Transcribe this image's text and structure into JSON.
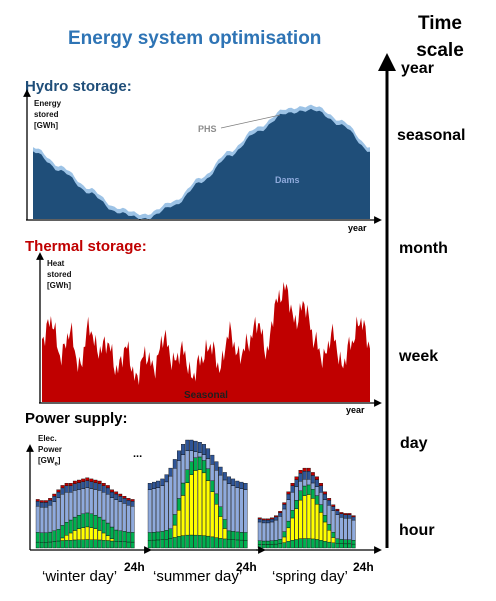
{
  "title": "Energy system optimisation",
  "hydro": {
    "title": "Hydro storage:",
    "ylabel": "Energy stored [GWh]",
    "xlabel": "year",
    "phs_label": "PHS",
    "dams_label": "Dams",
    "colors": {
      "dams": "#1f4e79",
      "phs": "#9dc3e6"
    }
  },
  "thermal": {
    "title": "Thermal storage:",
    "ylabel": "Heat stored [GWh]",
    "xlabel": "year",
    "seasonal_label": "Seasonal",
    "colors": {
      "fill": "#c00000"
    }
  },
  "power": {
    "title": "Power supply:",
    "ylabel_line1": "Elec.",
    "ylabel_line2": "Power",
    "ylabel_line3": "[GW",
    "ylabel_sub": "e",
    "ylabel_end": "]",
    "ellipsis": "...",
    "days": [
      {
        "label": "‘winter day’",
        "end": "24h"
      },
      {
        "label": "‘summer day’",
        "end": "24h"
      },
      {
        "label": "‘spring day’",
        "end": "24h"
      }
    ],
    "colors": {
      "base": "#00b050",
      "solar": "#ffff00",
      "wind": "#8faadc",
      "hydro": "#2f5597",
      "other": "#c00000"
    }
  },
  "timescale": {
    "title_line1": "Time",
    "title_line2": "scale",
    "levels": [
      "year",
      "seasonal",
      "month",
      "week",
      "day",
      "hour"
    ]
  },
  "chart_data": [
    {
      "type": "area",
      "title": "Hydro storage:",
      "ylabel": "Energy stored [GWh]",
      "xlabel": "year",
      "x": [
        0,
        1,
        2,
        3,
        4,
        5,
        6,
        7,
        8,
        9,
        10,
        11,
        12
      ],
      "series": [
        {
          "name": "Dams",
          "values": [
            0.62,
            0.44,
            0.24,
            0.06,
            0.0,
            0.12,
            0.34,
            0.58,
            0.8,
            0.97,
            1.0,
            0.86,
            0.62
          ]
        },
        {
          "name": "PHS",
          "values": [
            0.02,
            0.02,
            0.02,
            0.02,
            0.02,
            0.02,
            0.02,
            0.02,
            0.02,
            0.02,
            0.02,
            0.02,
            0.02
          ]
        }
      ]
    },
    {
      "type": "area",
      "title": "Thermal storage:",
      "ylabel": "Heat stored [GWh]",
      "xlabel": "year",
      "series": [
        {
          "name": "Seasonal",
          "values": [
            0.55,
            0.72,
            0.4,
            0.62,
            0.3,
            0.66,
            0.45,
            0.52,
            0.28,
            0.48,
            0.2,
            0.42,
            0.3,
            0.58,
            0.35,
            0.46,
            0.22,
            0.38,
            0.5,
            0.3,
            0.62,
            0.4,
            0.52,
            0.7,
            0.44,
            0.88,
            1.0,
            0.7,
            0.86,
            0.56,
            0.38,
            0.6,
            0.32,
            0.52,
            0.72,
            0.5
          ]
        }
      ]
    },
    {
      "type": "bar",
      "title": "Power supply:",
      "series": [
        {
          "name": "winter day",
          "values": [
            0.45,
            0.44,
            0.44,
            0.46,
            0.5,
            0.54,
            0.58,
            0.6,
            0.6,
            0.62,
            0.63,
            0.64,
            0.65,
            0.64,
            0.63,
            0.62,
            0.6,
            0.58,
            0.54,
            0.52,
            0.5,
            0.48,
            0.46,
            0.45
          ]
        },
        {
          "name": "summer day",
          "values": [
            0.6,
            0.61,
            0.62,
            0.64,
            0.68,
            0.74,
            0.82,
            0.9,
            0.96,
            1.0,
            1.0,
            0.99,
            0.98,
            0.96,
            0.92,
            0.86,
            0.8,
            0.75,
            0.7,
            0.66,
            0.64,
            0.62,
            0.61,
            0.6
          ]
        },
        {
          "name": "spring day",
          "values": [
            0.28,
            0.27,
            0.27,
            0.28,
            0.3,
            0.34,
            0.42,
            0.52,
            0.6,
            0.66,
            0.72,
            0.74,
            0.74,
            0.7,
            0.66,
            0.6,
            0.52,
            0.46,
            0.4,
            0.36,
            0.33,
            0.32,
            0.32,
            0.3
          ]
        }
      ]
    }
  ]
}
